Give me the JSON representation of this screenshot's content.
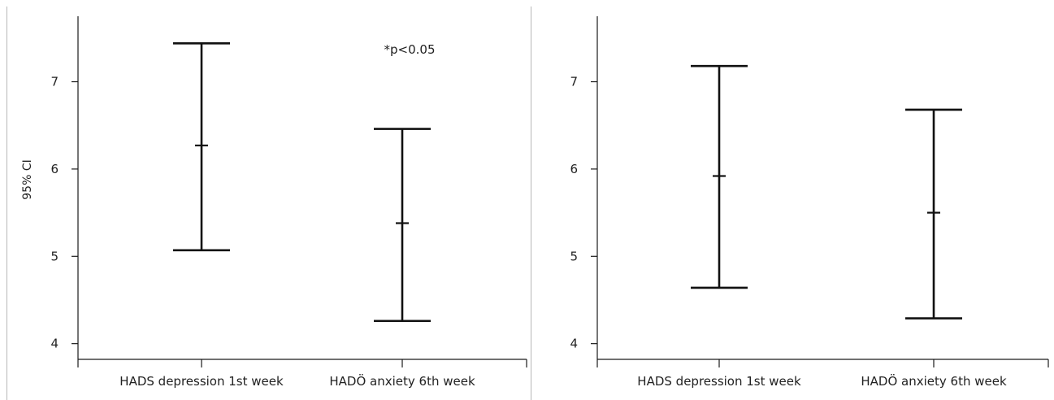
{
  "chart_data": [
    {
      "type": "errorbar",
      "title": "",
      "xlabel": "",
      "ylabel": "95% CI",
      "ylim": [
        3.82,
        7.75
      ],
      "yticks": [
        4,
        5,
        6,
        7
      ],
      "categories": [
        "HADS depression 1st week",
        "HADÖ anxiety 6th week"
      ],
      "series": [
        {
          "mean": [
            6.27,
            5.38
          ],
          "lower": [
            5.07,
            4.26
          ],
          "upper": [
            7.44,
            6.46
          ]
        }
      ],
      "annotations": [
        "*p<0.05"
      ],
      "grid": false,
      "legend": "none"
    },
    {
      "type": "errorbar",
      "title": "",
      "xlabel": "",
      "ylabel": "",
      "ylim": [
        3.82,
        7.75
      ],
      "yticks": [
        4,
        5,
        6,
        7
      ],
      "categories": [
        "HADS depression 1st week",
        "HADÖ anxiety 6th week"
      ],
      "series": [
        {
          "mean": [
            5.92,
            5.5
          ],
          "lower": [
            4.64,
            4.29
          ],
          "upper": [
            7.18,
            6.68
          ]
        }
      ],
      "annotations": [],
      "grid": false,
      "legend": "none"
    }
  ]
}
